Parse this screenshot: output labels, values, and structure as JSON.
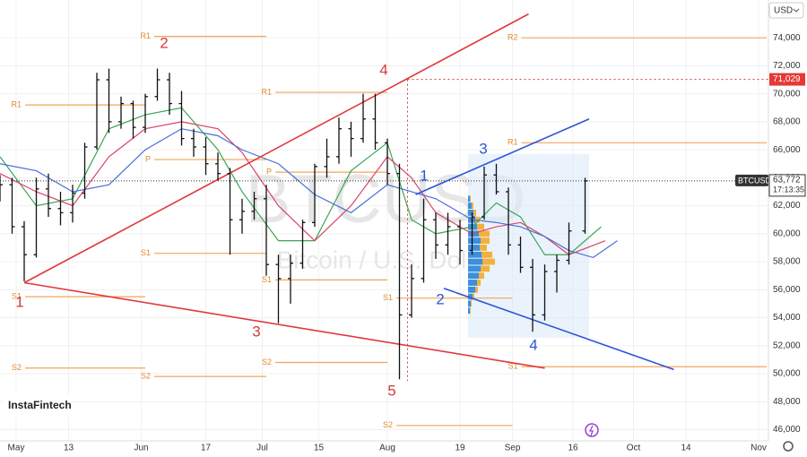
{
  "chart_data": {
    "type": "ohlc",
    "watermark": "BTCUSD",
    "watermark_sub": "Bitcoin / U.S. Dollar",
    "currency": "USD",
    "brand": "InstaFintech",
    "symbol": "BTCUSD",
    "countdown": "17:13:35",
    "last_price": {
      "value": 63772,
      "label": "63,772"
    },
    "level": {
      "value": 71029,
      "label": "71,029",
      "x": 97
    },
    "xlim": [
      -4,
      186
    ],
    "ylim": [
      45200,
      76700
    ],
    "grid": true,
    "xticks": [
      {
        "value": 0,
        "label": "May"
      },
      13,
      {
        "value": 31,
        "label": "Jun"
      },
      {
        "value": 47,
        "label": "17"
      },
      {
        "value": 61,
        "label": "Jul"
      },
      {
        "value": 75,
        "label": "15"
      },
      {
        "value": 92,
        "label": "Aug"
      },
      {
        "value": 110,
        "label": "19"
      },
      {
        "value": 123,
        "label": "Sep"
      },
      {
        "value": 138,
        "label": "16"
      },
      {
        "value": 153,
        "label": "Oct"
      },
      {
        "value": 166,
        "label": "14"
      },
      {
        "value": 184,
        "label": "Nov"
      }
    ],
    "yticks": [
      {
        "value": 46000,
        "label": "46,000"
      },
      {
        "value": 48000,
        "label": "48,000"
      },
      {
        "value": 50000,
        "label": "50,000"
      },
      {
        "value": 52000,
        "label": "52,000"
      },
      {
        "value": 54000,
        "label": "54,000"
      },
      {
        "value": 56000,
        "label": "56,000"
      },
      {
        "value": 58000,
        "label": "58,000"
      },
      {
        "value": 60000,
        "label": "60,000"
      },
      {
        "value": 62000,
        "label": "62,000"
      },
      {
        "value": 64000,
        "label": "64,000"
      },
      {
        "value": 66000,
        "label": "66,000"
      },
      {
        "value": 68000,
        "label": "68,000"
      },
      {
        "value": 70000,
        "label": "70,000"
      },
      {
        "value": 72000,
        "label": "72,000"
      },
      {
        "value": 74000,
        "label": "74,000"
      }
    ],
    "bar_color": "#111111",
    "ohlc": {
      "x": [
        -4,
        -1,
        2,
        5,
        8,
        11,
        14,
        17,
        20,
        23,
        26,
        29,
        32,
        35,
        38,
        41,
        44,
        47,
        50,
        53,
        56,
        59,
        62,
        65,
        68,
        71,
        74,
        77,
        80,
        83,
        86,
        89,
        92,
        95,
        98,
        101,
        104,
        107,
        110,
        113,
        116,
        119,
        122,
        125,
        128,
        131,
        134,
        137,
        141
      ],
      "open": [
        63000,
        63500,
        60500,
        58500,
        63200,
        61800,
        61500,
        62900,
        66200,
        71000,
        68000,
        69300,
        67600,
        69800,
        71000,
        69300,
        66800,
        66200,
        65000,
        64300,
        61000,
        61600,
        62500,
        57800,
        56800,
        57900,
        60800,
        64800,
        65500,
        67500,
        66800,
        68200,
        66500,
        64300,
        54200,
        56800,
        61000,
        59200,
        60500,
        58800,
        61200,
        64200,
        63000,
        59200,
        57600,
        54200,
        57300,
        58100,
        60200
      ],
      "high": [
        64200,
        64000,
        60900,
        64000,
        64300,
        63000,
        63500,
        66500,
        71500,
        71800,
        69800,
        69500,
        70000,
        71800,
        71500,
        70200,
        67500,
        66900,
        65800,
        64700,
        62500,
        63000,
        63500,
        58500,
        58500,
        61000,
        65000,
        66800,
        68300,
        68000,
        70000,
        70000,
        66800,
        65000,
        57800,
        62500,
        61500,
        61500,
        61000,
        61500,
        64800,
        65000,
        63300,
        59800,
        58200,
        57800,
        58500,
        60800,
        64000
      ],
      "low": [
        62300,
        60000,
        56600,
        58300,
        61200,
        60600,
        60800,
        62500,
        66000,
        67200,
        67500,
        66800,
        67200,
        69500,
        68500,
        66300,
        65500,
        64200,
        63800,
        58500,
        60000,
        61000,
        57000,
        53600,
        55000,
        57500,
        60500,
        64000,
        65000,
        65500,
        66500,
        66000,
        63500,
        49600,
        54000,
        56500,
        58200,
        58500,
        57800,
        58500,
        61000,
        62800,
        58500,
        57200,
        53000,
        53800,
        55800,
        57800,
        60000
      ],
      "close": [
        63500,
        60500,
        58500,
        63200,
        61800,
        61500,
        62900,
        66200,
        71000,
        68000,
        69300,
        67600,
        69800,
        71000,
        69300,
        66800,
        66200,
        65000,
        64300,
        61000,
        61600,
        62500,
        57800,
        56800,
        57900,
        60800,
        64800,
        65500,
        67500,
        66800,
        68200,
        66500,
        64300,
        54200,
        56800,
        61000,
        59200,
        60500,
        58800,
        61200,
        64200,
        63000,
        59200,
        57600,
        54200,
        57300,
        58100,
        60200,
        63772
      ]
    },
    "moving_averages": [
      {
        "color": "#3aa655",
        "x": [
          -4,
          5,
          14,
          23,
          32,
          41,
          50,
          56,
          65,
          74,
          83,
          92,
          98,
          104,
          113,
          119,
          125,
          131,
          137,
          145
        ],
        "values": [
          65500,
          62000,
          62500,
          67500,
          68500,
          69000,
          66000,
          63000,
          59500,
          59500,
          64500,
          66500,
          61000,
          60000,
          60500,
          62200,
          61200,
          58500,
          58500,
          60500
        ]
      },
      {
        "color": "#d9456a",
        "x": [
          -4,
          5,
          14,
          23,
          32,
          41,
          50,
          56,
          65,
          74,
          83,
          92,
          98,
          104,
          113,
          119,
          125,
          131,
          137,
          146
        ],
        "values": [
          64300,
          63000,
          62000,
          65500,
          67500,
          68000,
          67500,
          65800,
          62000,
          59500,
          62000,
          65500,
          64000,
          61500,
          60000,
          60500,
          60800,
          59800,
          58500,
          59500
        ]
      },
      {
        "color": "#4a6fd8",
        "x": [
          -4,
          5,
          14,
          23,
          32,
          41,
          50,
          56,
          65,
          74,
          83,
          92,
          98,
          104,
          113,
          119,
          125,
          131,
          137,
          143,
          149
        ],
        "values": [
          65000,
          64500,
          63000,
          63500,
          66000,
          67500,
          67000,
          66000,
          65000,
          62800,
          61500,
          63500,
          63000,
          62500,
          61000,
          60800,
          60500,
          59800,
          58800,
          58300,
          59500
        ]
      }
    ],
    "trendlines": [
      {
        "color": "#e0393e",
        "x": [
          2,
          127
        ],
        "values": [
          56500,
          75700
        ]
      },
      {
        "color": "#e0393e",
        "x": [
          2,
          131
        ],
        "values": [
          56500,
          50400
        ]
      },
      {
        "color": "#2d55d6",
        "x": [
          99,
          142
        ],
        "values": [
          62800,
          68200
        ]
      },
      {
        "color": "#2d55d6",
        "x": [
          106,
          163
        ],
        "values": [
          56100,
          50300
        ]
      }
    ],
    "pivots": [
      {
        "label": "R1",
        "value": 69200,
        "from": 0,
        "to": 32
      },
      {
        "label": "S1",
        "value": 55500,
        "from": 0,
        "to": 32
      },
      {
        "label": "S2",
        "value": 50400,
        "from": 0,
        "to": 32
      },
      {
        "label": "R1",
        "value": 74100,
        "from": 32,
        "to": 62
      },
      {
        "label": "P",
        "value": 65300,
        "from": 32,
        "to": 62
      },
      {
        "label": "S1",
        "value": 58600,
        "from": 32,
        "to": 62
      },
      {
        "label": "S2",
        "value": 49800,
        "from": 32,
        "to": 62
      },
      {
        "label": "R1",
        "value": 70100,
        "from": 62,
        "to": 92
      },
      {
        "label": "P",
        "value": 64400,
        "from": 62,
        "to": 92
      },
      {
        "label": "S1",
        "value": 56700,
        "from": 62,
        "to": 92
      },
      {
        "label": "S2",
        "value": 50800,
        "from": 62,
        "to": 92
      },
      {
        "label": "S1",
        "value": 55400,
        "from": 92,
        "to": 123
      },
      {
        "label": "S2",
        "value": 46300,
        "from": 92,
        "to": 123
      },
      {
        "label": "R2",
        "value": 74000,
        "from": 123,
        "to": 186
      },
      {
        "label": "R1",
        "value": 66500,
        "from": 123,
        "to": 186
      },
      {
        "label": "S1",
        "value": 50500,
        "from": 123,
        "to": 186
      }
    ],
    "volume_profile": {
      "x": [
        112,
        142
      ],
      "prices": [
        54500,
        55000,
        55500,
        56000,
        56500,
        57000,
        57500,
        58000,
        58500,
        59000,
        59500,
        60000,
        60500,
        61000,
        61500,
        62000,
        62500
      ],
      "buy": [
        2,
        3,
        5,
        8,
        10,
        12,
        14,
        16,
        15,
        13,
        14,
        12,
        10,
        8,
        6,
        4,
        2
      ],
      "sell": [
        1,
        1,
        2,
        3,
        4,
        6,
        10,
        14,
        12,
        8,
        10,
        12,
        8,
        5,
        3,
        2,
        1
      ]
    },
    "annotations": [
      {
        "text": "1",
        "color": "#d63a3a"
      },
      {
        "text": "2",
        "color": "#d63a3a"
      },
      {
        "text": "3",
        "color": "#d63a3a"
      },
      {
        "text": "4",
        "color": "#d63a3a"
      },
      {
        "text": "5",
        "color": "#d63a3a"
      },
      {
        "text": "1",
        "color": "#2d55d6"
      },
      {
        "text": "2",
        "color": "#2d55d6"
      },
      {
        "text": "3",
        "color": "#2d55d6"
      },
      {
        "text": "4",
        "color": "#2d55d6"
      }
    ]
  }
}
